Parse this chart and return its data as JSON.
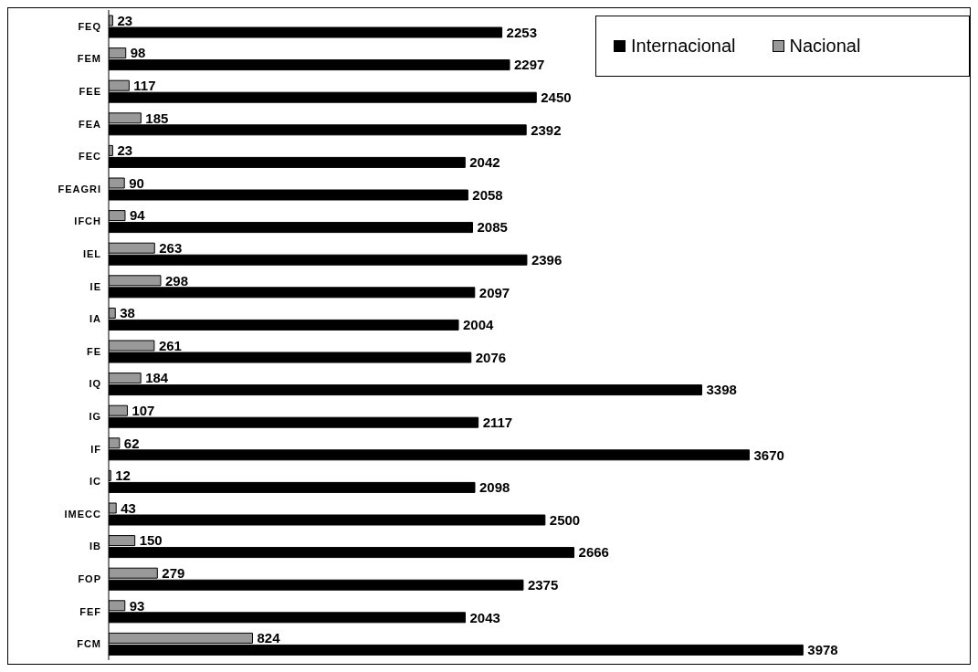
{
  "chart_data": {
    "type": "bar",
    "orientation": "horizontal",
    "categories": [
      "FEQ",
      "FEM",
      "FEE",
      "FEA",
      "FEC",
      "FEAGRI",
      "IFCH",
      "IEL",
      "IE",
      "IA",
      "FE",
      "IQ",
      "IG",
      "IF",
      "IC",
      "IMECC",
      "IB",
      "FOP",
      "FEF",
      "FCM"
    ],
    "series": [
      {
        "name": "Internacional",
        "color": "#000000",
        "values": [
          2253,
          2297,
          2450,
          2392,
          2042,
          2058,
          2085,
          2396,
          2097,
          2004,
          2076,
          3398,
          2117,
          3670,
          2098,
          2500,
          2666,
          2375,
          2043,
          3978
        ]
      },
      {
        "name": "Nacional",
        "color": "#999999",
        "values": [
          23,
          98,
          117,
          185,
          23,
          90,
          94,
          263,
          298,
          38,
          261,
          184,
          107,
          62,
          12,
          43,
          150,
          279,
          93,
          824
        ]
      }
    ],
    "data_labels": true,
    "legend": "top right"
  }
}
